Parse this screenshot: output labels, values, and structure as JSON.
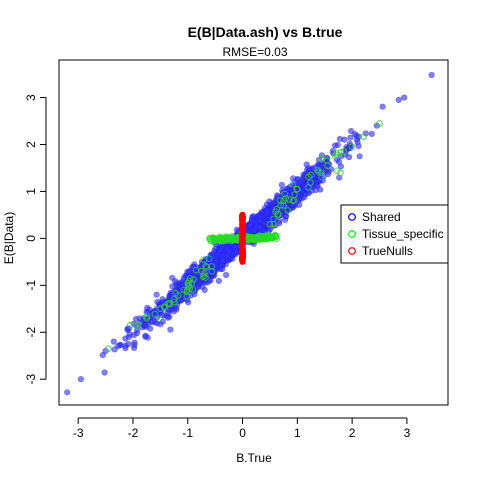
{
  "chart_data": {
    "type": "scatter",
    "title": "E(B|Data.ash) vs B.true",
    "subtitle": "RMSE=0.03",
    "xlabel": "B.True",
    "ylabel": "E(B|Data)",
    "xlim": [
      -3.35,
      3.75
    ],
    "ylim": [
      -3.55,
      3.8
    ],
    "xticks": [
      -3,
      -2,
      -1,
      0,
      1,
      2,
      3
    ],
    "yticks": [
      -3,
      -2,
      -1,
      0,
      1,
      2,
      3
    ],
    "tick_labels_x": [
      "-3",
      "-2",
      "-1",
      "0",
      "1",
      "2",
      "3"
    ],
    "tick_labels_y": [
      "-3",
      "-2",
      "-1",
      "0",
      "1",
      "2",
      "3"
    ],
    "grid": false,
    "legend": {
      "placement": "right",
      "entries": [
        {
          "label": "Shared",
          "color": "#0000ff"
        },
        {
          "label": "Tissue_specific",
          "color": "#00ff00"
        },
        {
          "label": "TrueNulls",
          "color": "#ff0000"
        }
      ]
    },
    "series": [
      {
        "name": "Shared",
        "color": "#3333ff",
        "marker": "filled-circle",
        "points": [
          [
            -3.2,
            -3.28
          ],
          [
            -2.95,
            -3.0
          ],
          [
            -2.5,
            -2.4
          ],
          [
            -2.35,
            -2.2
          ],
          [
            -2.1,
            -1.95
          ],
          [
            -1.8,
            -1.7
          ],
          [
            -1.5,
            -1.45
          ],
          [
            -1.2,
            -1.15
          ],
          [
            -0.9,
            -0.85
          ],
          [
            -0.5,
            -0.4
          ],
          [
            -0.2,
            -0.1
          ],
          [
            0.2,
            0.15
          ],
          [
            0.5,
            0.45
          ],
          [
            0.9,
            0.8
          ],
          [
            1.2,
            1.15
          ],
          [
            1.5,
            1.45
          ],
          [
            1.8,
            1.75
          ],
          [
            2.1,
            2.05
          ],
          [
            2.45,
            2.4
          ],
          [
            2.85,
            2.95
          ],
          [
            2.95,
            3.0
          ],
          [
            3.45,
            3.48
          ]
        ]
      },
      {
        "name": "Tissue_specific",
        "color": "#33cc33",
        "marker": "open-circle",
        "points": [
          [
            -2.45,
            -2.35
          ],
          [
            -2.05,
            -1.85
          ],
          [
            -1.75,
            -1.7
          ],
          [
            -1.5,
            -1.5
          ],
          [
            -1.25,
            -1.3
          ],
          [
            -1.0,
            -0.95
          ],
          [
            -0.75,
            -0.7
          ],
          [
            -0.5,
            -0.1
          ],
          [
            -0.3,
            -0.05
          ],
          [
            -0.1,
            0.0
          ],
          [
            0.1,
            0.02
          ],
          [
            0.3,
            0.05
          ],
          [
            0.5,
            0.3
          ],
          [
            0.75,
            0.7
          ],
          [
            1.0,
            1.05
          ],
          [
            1.25,
            1.35
          ],
          [
            1.55,
            1.55
          ],
          [
            1.85,
            1.85
          ],
          [
            2.0,
            1.95
          ],
          [
            2.5,
            2.45
          ]
        ]
      },
      {
        "name": "TrueNulls",
        "color": "#ff0000",
        "marker": "filled-circle",
        "points": [
          [
            0,
            -0.5
          ],
          [
            0,
            0.5
          ]
        ]
      }
    ]
  }
}
